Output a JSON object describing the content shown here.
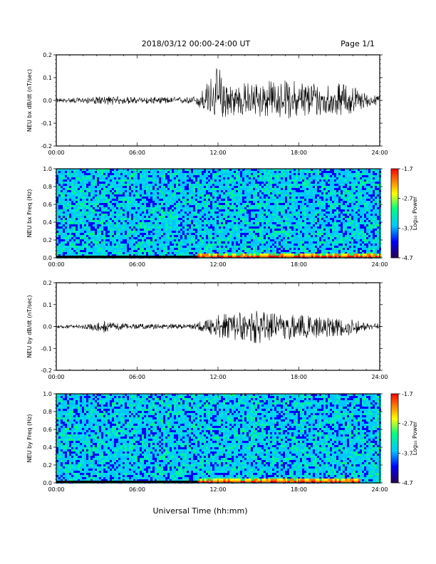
{
  "header": {
    "date_range": "2018/03/12  00:00-24:00 UT",
    "page": "Page 1/1"
  },
  "xaxis": {
    "label": "Universal Time (hh:mm)",
    "ticks": [
      "00:00",
      "06:00",
      "12:00",
      "18:00",
      "24:00"
    ],
    "range_hours": [
      0,
      24
    ]
  },
  "colors": {
    "trace": "#000000",
    "colormap": [
      "#2a0050",
      "#0000ff",
      "#00c8ff",
      "#00ff80",
      "#ffff00",
      "#ff8000",
      "#ff0000"
    ]
  },
  "chart_data": [
    {
      "type": "line",
      "ylabel": "NEU bx dB/dt (nT/sec)",
      "ylim": [
        -0.2,
        0.2
      ],
      "yticks": [
        "0.2",
        "0.1",
        "0.0",
        "-0.1",
        "-0.2"
      ],
      "x": [
        0,
        2,
        4,
        6,
        8,
        10,
        10.5,
        11,
        12,
        13,
        14,
        16,
        18,
        20,
        22,
        23,
        24
      ],
      "envelope_upper": [
        0.01,
        0.012,
        0.02,
        0.015,
        0.015,
        0.015,
        0.03,
        0.06,
        0.16,
        0.07,
        0.08,
        0.09,
        0.09,
        0.08,
        0.07,
        0.03,
        0.02
      ],
      "envelope_lower": [
        -0.01,
        -0.012,
        -0.02,
        -0.015,
        -0.015,
        -0.015,
        -0.03,
        -0.06,
        -0.08,
        -0.07,
        -0.07,
        -0.08,
        -0.08,
        -0.07,
        -0.06,
        -0.03,
        -0.02
      ]
    },
    {
      "type": "heatmap",
      "ylabel": "NEU bx Freq (Hz)",
      "ylim": [
        0,
        1.0
      ],
      "yticks": [
        "1.0",
        "0.8",
        "0.6",
        "0.4",
        "0.2",
        "0.0"
      ],
      "colorbar": {
        "label": "Log₁₀ Power",
        "ticks": [
          "-1.7",
          "-2.7",
          "-3.7",
          "-4.7"
        ],
        "range": [
          -4.7,
          -1.7
        ]
      },
      "low_freq_band_hours": [
        10.5,
        24
      ]
    },
    {
      "type": "line",
      "ylabel": "NEU by dB/dt (nT/sec)",
      "ylim": [
        -0.2,
        0.2
      ],
      "yticks": [
        "0.2",
        "0.1",
        "0.0",
        "-0.1",
        "-0.2"
      ],
      "x": [
        0,
        2,
        3.5,
        4,
        6,
        8,
        10,
        11,
        12,
        13,
        14,
        15,
        16,
        18,
        20,
        22,
        23,
        24
      ],
      "envelope_upper": [
        0.008,
        0.01,
        0.03,
        0.02,
        0.012,
        0.012,
        0.012,
        0.03,
        0.06,
        0.06,
        0.07,
        0.08,
        0.07,
        0.06,
        0.05,
        0.04,
        0.02,
        0.015
      ],
      "envelope_lower": [
        -0.008,
        -0.01,
        -0.03,
        -0.02,
        -0.012,
        -0.012,
        -0.012,
        -0.03,
        -0.05,
        -0.06,
        -0.07,
        -0.09,
        -0.07,
        -0.06,
        -0.05,
        -0.04,
        -0.02,
        -0.015
      ]
    },
    {
      "type": "heatmap",
      "ylabel": "NEU by Freq (Hz)",
      "ylim": [
        0,
        1.0
      ],
      "yticks": [
        "1.0",
        "0.8",
        "0.6",
        "0.4",
        "0.2",
        "0.0"
      ],
      "colorbar": {
        "label": "Log₁₀ Power",
        "ticks": [
          "-1.7",
          "-2.7",
          "-3.7",
          "-4.7"
        ],
        "range": [
          -4.7,
          -1.7
        ]
      },
      "low_freq_band_hours": [
        10.5,
        22.5
      ]
    }
  ]
}
